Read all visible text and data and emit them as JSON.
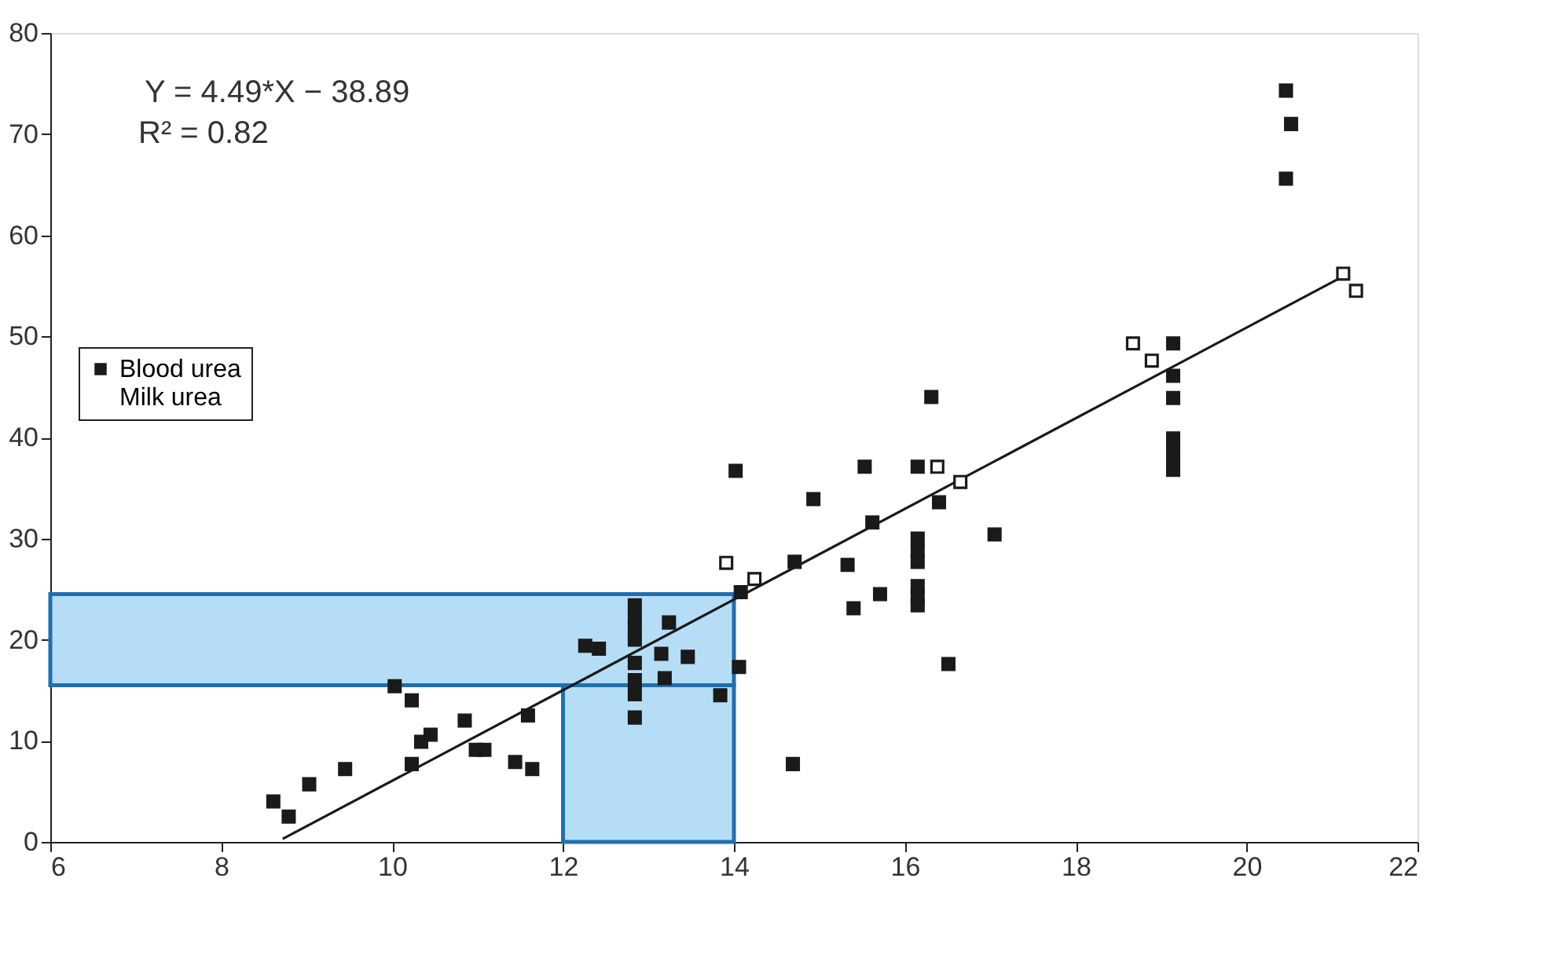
{
  "chart_data": {
    "type": "scatter",
    "xlim": [
      6,
      22
    ],
    "ylim": [
      0,
      80
    ],
    "xticks": [
      6,
      8,
      10,
      12,
      14,
      16,
      18,
      20,
      22
    ],
    "yticks": [
      0,
      10,
      20,
      30,
      40,
      50,
      60,
      70,
      80
    ],
    "grid": false,
    "legend": "top left",
    "annotations": [
      "Y = 4.49*X − 38.89",
      "R² = 0.82"
    ],
    "bands": [
      {
        "axis": "y",
        "from": 15.5,
        "to": 24.5,
        "color": "#a8d8f5"
      },
      {
        "axis": "x",
        "from": 12,
        "to": 14,
        "color": "#a8d8f5"
      }
    ],
    "series": [
      {
        "name": "Blood urea",
        "color": "#1a1a1a",
        "marker": "square",
        "x": [
          8.61,
          8.79,
          9.03,
          9.45,
          10.03,
          10.23,
          10.23,
          10.34,
          10.45,
          10.85,
          10.98,
          11.08,
          11.44,
          11.64,
          11.59,
          12.26,
          12.42,
          12.84,
          12.84,
          12.84,
          12.84,
          12.84,
          12.84,
          12.84,
          12.84,
          13.24,
          13.15,
          13.46,
          13.19,
          13.84,
          14.06,
          14.69,
          14.08,
          14.02,
          15.53,
          16.15,
          14.93,
          16.4,
          15.62,
          16.15,
          16.15,
          16.15,
          16.15,
          16.15,
          16.15,
          17.05,
          14.71,
          15.33,
          15.71,
          15.4,
          16.51,
          16.31,
          20.46,
          20.52,
          20.46,
          19.14,
          19.14,
          19.14,
          19.14,
          19.14,
          19.14,
          19.14
        ],
        "values": [
          4.0,
          2.5,
          5.7,
          7.2,
          15.4,
          14.0,
          7.7,
          9.9,
          10.6,
          12.0,
          9.1,
          9.1,
          7.9,
          7.2,
          12.5,
          19.4,
          19.1,
          23.4,
          22.2,
          21.1,
          20.0,
          17.7,
          16.0,
          14.6,
          12.3,
          21.7,
          18.6,
          18.3,
          16.2,
          14.5,
          17.3,
          7.7,
          24.7,
          36.7,
          37.1,
          37.1,
          33.9,
          33.6,
          31.6,
          30.0,
          28.8,
          27.7,
          25.3,
          24.2,
          23.4,
          30.4,
          27.7,
          27.4,
          24.5,
          23.1,
          17.6,
          44.0,
          74.3,
          71.0,
          65.6,
          49.3,
          46.1,
          43.9,
          39.9,
          38.8,
          37.6,
          36.8
        ]
      },
      {
        "name": "Milk urea",
        "color": "#ffffff",
        "marker": "square",
        "x": [
          13.91,
          14.24,
          16.38,
          16.65,
          18.67,
          18.89,
          21.13,
          21.28
        ],
        "values": [
          27.6,
          26.0,
          37.1,
          35.6,
          49.3,
          47.6,
          56.2,
          54.5
        ]
      },
      {
        "type": "line",
        "color": "#1a1a1a",
        "x": [
          8.72,
          21.19
        ],
        "values": [
          0.3,
          56.2
        ]
      }
    ]
  }
}
